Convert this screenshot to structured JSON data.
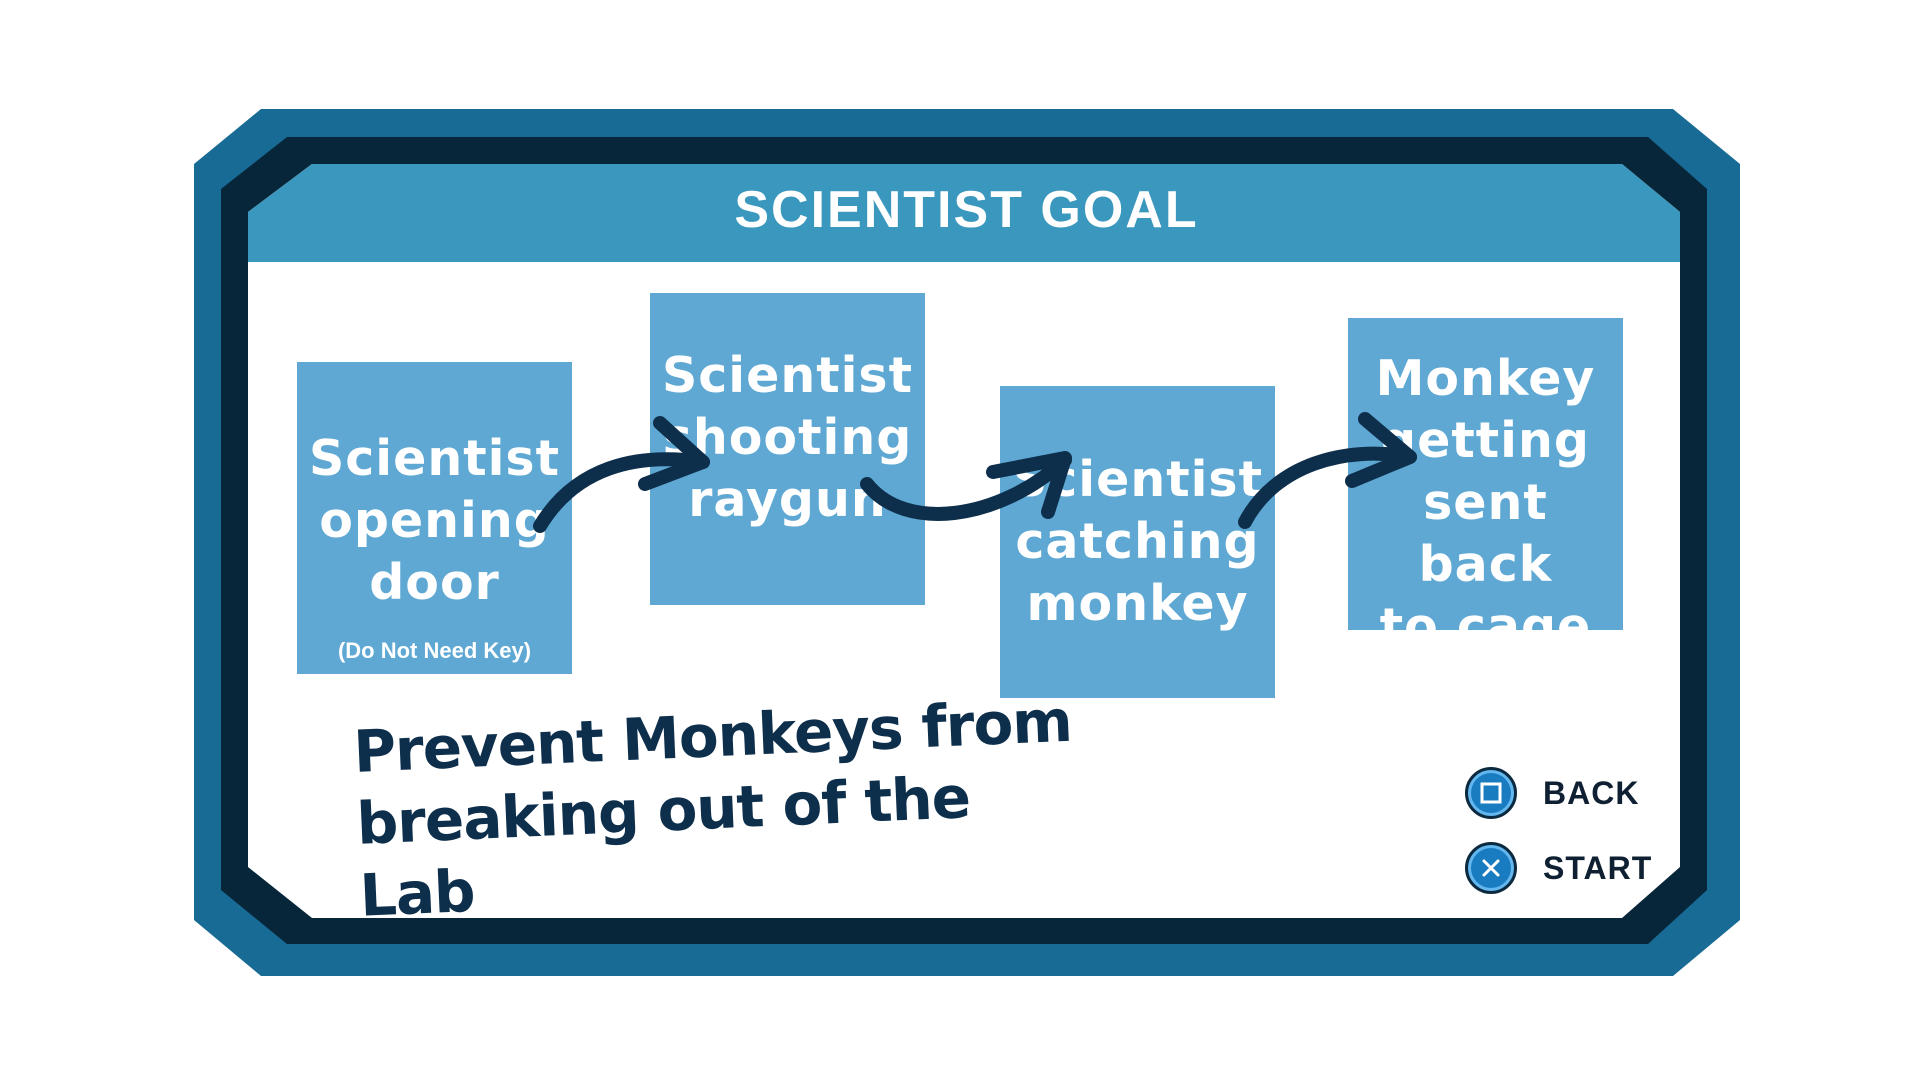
{
  "panel": {
    "title": "SCIENTIST GOAL"
  },
  "steps": [
    {
      "label": "Scientist\nopening\ndoor",
      "note": "(Do Not Need Key)"
    },
    {
      "label": "Scientist\nshooting\nraygun"
    },
    {
      "label": "Scientist\ncatching\nmonkey"
    },
    {
      "label": "Monkey\ngetting\nsent back\nto cage"
    }
  ],
  "objective": {
    "line1": "Prevent Monkeys from",
    "line2": "breaking out of the Lab"
  },
  "controls": {
    "back": {
      "label": "BACK",
      "icon": "square-button-icon"
    },
    "start": {
      "label": "START",
      "icon": "cross-button-icon"
    }
  },
  "colors": {
    "outer_frame": "#176b94",
    "inner_frame": "#08263a",
    "title_bar": "#3a97bd",
    "step_box": "#5ea8d3",
    "arrow": "#0e2f4b",
    "objective_text": "#0e2f4b"
  }
}
